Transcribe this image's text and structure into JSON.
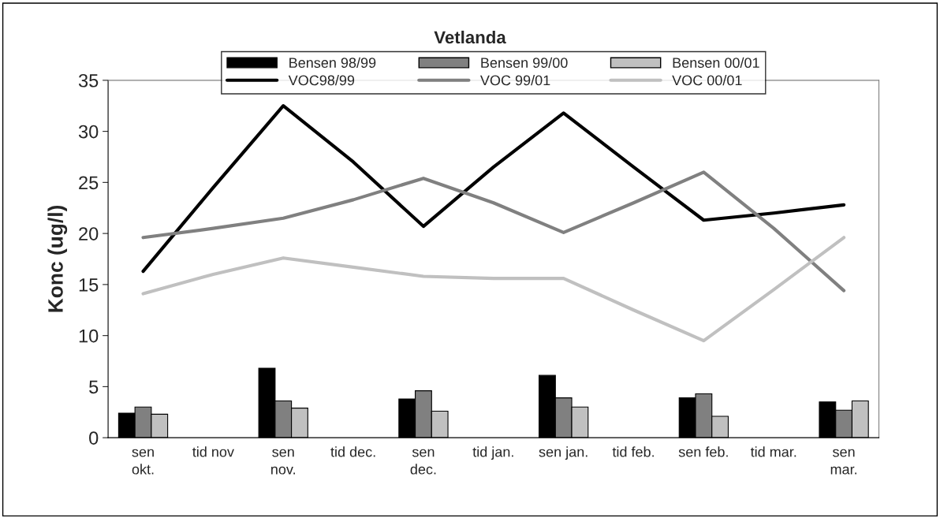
{
  "chart_data": {
    "type": "bar",
    "title": "Vetlanda",
    "ylabel": "Konc (ug/l)",
    "categories": [
      "sen\nokt.",
      "tid nov",
      "sen\nnov.",
      "tid dec.",
      "sen\ndec.",
      "tid jan.",
      "sen jan.",
      "tid feb.",
      "sen feb.",
      "tid mar.",
      "sen\nmar."
    ],
    "series": [
      {
        "name": "Bensen 98/99",
        "color": "#000000",
        "values": [
          2.4,
          null,
          6.8,
          null,
          3.8,
          null,
          6.1,
          null,
          3.9,
          null,
          3.5
        ]
      },
      {
        "name": "Bensen 99/00",
        "color": "#808080",
        "values": [
          3.0,
          null,
          3.6,
          null,
          4.6,
          null,
          3.9,
          null,
          4.3,
          null,
          2.7
        ]
      },
      {
        "name": "Bensen 00/01",
        "color": "#c0c0c0",
        "values": [
          2.3,
          null,
          2.9,
          null,
          2.6,
          null,
          3.0,
          null,
          2.1,
          null,
          3.6
        ]
      },
      {
        "name": "VOC98/99",
        "type": "line",
        "color": "#000000",
        "values": [
          16.3,
          24.5,
          32.5,
          27,
          20.7,
          26.5,
          31.8,
          26.5,
          21.3,
          22,
          22.8
        ]
      },
      {
        "name": "VOC 99/01",
        "type": "line",
        "color": "#808080",
        "values": [
          19.6,
          20.5,
          21.5,
          23.3,
          25.4,
          23,
          20.1,
          23,
          26,
          20.5,
          14.4
        ]
      },
      {
        "name": "VOC 00/01",
        "type": "line",
        "color": "#c0c0c0",
        "values": [
          14.1,
          16,
          17.6,
          16.7,
          15.8,
          15.6,
          15.6,
          12.5,
          9.5,
          14.5,
          19.6
        ]
      }
    ],
    "ylim": [
      0,
      35
    ],
    "yticks": [
      0,
      5,
      10,
      15,
      20,
      25,
      30,
      35
    ],
    "grid": false,
    "legend": "top",
    "marker": "none",
    "line_style": "solid"
  }
}
